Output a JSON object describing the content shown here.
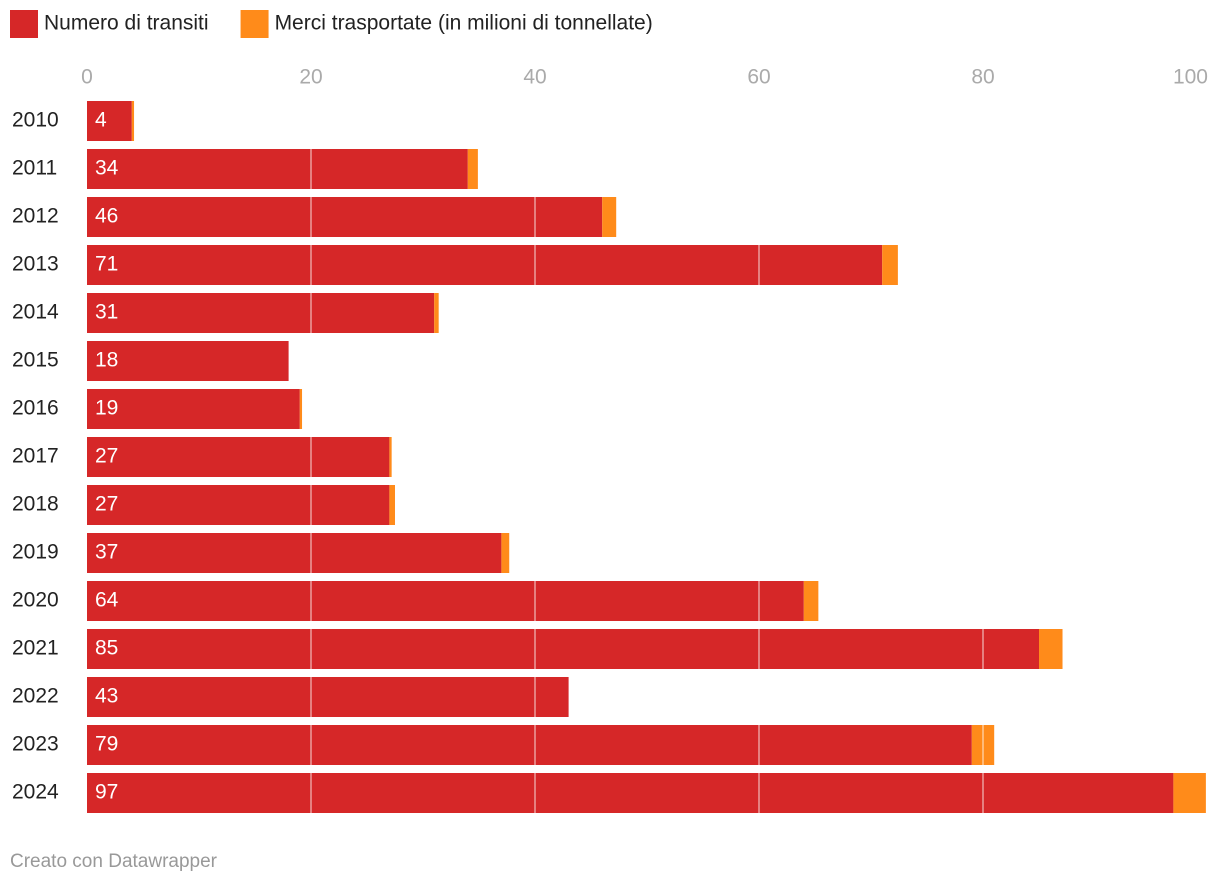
{
  "chart_data": {
    "type": "stacked-bar-horizontal",
    "categories": [
      "2010",
      "2011",
      "2012",
      "2013",
      "2014",
      "2015",
      "2016",
      "2017",
      "2018",
      "2019",
      "2020",
      "2021",
      "2022",
      "2023",
      "2024"
    ],
    "series": [
      {
        "name": "Numero di transiti",
        "color": "#d62728",
        "values": [
          4,
          34,
          46,
          71,
          31,
          18,
          19,
          27,
          27,
          37,
          64,
          85,
          43,
          79,
          97
        ]
      },
      {
        "name": "Merci trasportate (in milioni di tonnellate)",
        "color": "#ff8b1a",
        "values": [
          0.2,
          0.9,
          1.25,
          1.4,
          0.4,
          0,
          0.2,
          0.2,
          0.5,
          0.7,
          1.3,
          2.1,
          0,
          2.0,
          2.9
        ]
      }
    ],
    "xlim": [
      0,
      100
    ],
    "xticks": [
      0,
      20,
      40,
      60,
      80,
      100
    ],
    "grid": true,
    "footer": "Creato con Datawrapper"
  }
}
